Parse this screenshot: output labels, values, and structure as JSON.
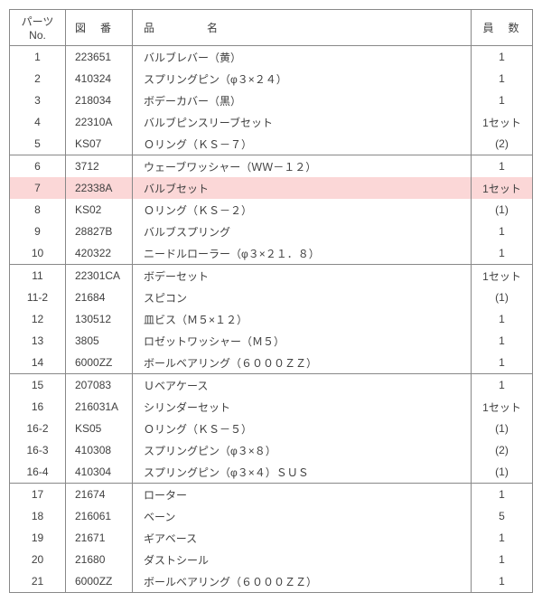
{
  "table": {
    "headers": {
      "no": "パーツNo.",
      "fig": "図　番",
      "name": "品　　　　名",
      "qty": "員　数"
    },
    "groups": [
      [
        {
          "no": "1",
          "fig": "223651",
          "name": "バルブレバー（黄）",
          "qty": "1"
        },
        {
          "no": "2",
          "fig": "410324",
          "name": "スプリングピン（φ３×２４）",
          "qty": "1"
        },
        {
          "no": "3",
          "fig": "218034",
          "name": "ボデーカバー（黒）",
          "qty": "1"
        },
        {
          "no": "4",
          "fig": "22310A",
          "name": "バルブピンスリーブセット",
          "qty": "1セット"
        },
        {
          "no": "5",
          "fig": "KS07",
          "name": "Ｏリング（ＫＳ－７）",
          "qty": "(2)"
        }
      ],
      [
        {
          "no": "6",
          "fig": "3712",
          "name": "ウェーブワッシャー（ＷＷ－１２）",
          "qty": "1"
        },
        {
          "no": "7",
          "fig": "22338A",
          "name": "バルブセット",
          "qty": "1セット",
          "highlight": true
        },
        {
          "no": "8",
          "fig": "KS02",
          "name": "Ｏリング（ＫＳ－２）",
          "qty": "(1)"
        },
        {
          "no": "9",
          "fig": "28827B",
          "name": "バルブスプリング",
          "qty": "1"
        },
        {
          "no": "10",
          "fig": "420322",
          "name": "ニードルローラー（φ３×２１．８）",
          "qty": "1"
        }
      ],
      [
        {
          "no": "11",
          "fig": "22301CA",
          "name": "ボデーセット",
          "qty": "1セット"
        },
        {
          "no": "11-2",
          "fig": "21684",
          "name": "スピコン",
          "qty": "(1)"
        },
        {
          "no": "12",
          "fig": "130512",
          "name": "皿ビス（Ｍ５×１２）",
          "qty": "1"
        },
        {
          "no": "13",
          "fig": "3805",
          "name": "ロゼットワッシャー（Ｍ５）",
          "qty": "1"
        },
        {
          "no": "14",
          "fig": "6000ZZ",
          "name": "ボールベアリング（６０００ＺＺ）",
          "qty": "1"
        }
      ],
      [
        {
          "no": "15",
          "fig": "207083",
          "name": "Ｕベアケース",
          "qty": "1"
        },
        {
          "no": "16",
          "fig": "216031A",
          "name": "シリンダーセット",
          "qty": "1セット"
        },
        {
          "no": "16-2",
          "fig": "KS05",
          "name": "Ｏリング（ＫＳ－５）",
          "qty": "(1)"
        },
        {
          "no": "16-3",
          "fig": "410308",
          "name": "スプリングピン（φ３×８）",
          "qty": "(2)"
        },
        {
          "no": "16-4",
          "fig": "410304",
          "name": "スプリングピン（φ３×４）ＳＵＳ",
          "qty": "(1)"
        }
      ],
      [
        {
          "no": "17",
          "fig": "21674",
          "name": "ローター",
          "qty": "1"
        },
        {
          "no": "18",
          "fig": "216061",
          "name": "ベーン",
          "qty": "5"
        },
        {
          "no": "19",
          "fig": "21671",
          "name": "ギアベース",
          "qty": "1"
        },
        {
          "no": "20",
          "fig": "21680",
          "name": "ダストシール",
          "qty": "1"
        },
        {
          "no": "21",
          "fig": "6000ZZ",
          "name": "ボールベアリング（６０００ＺＺ）",
          "qty": "1"
        }
      ]
    ],
    "highlight_color": "#fbd7d7",
    "border_color": "#888888",
    "text_color": "#404040"
  }
}
